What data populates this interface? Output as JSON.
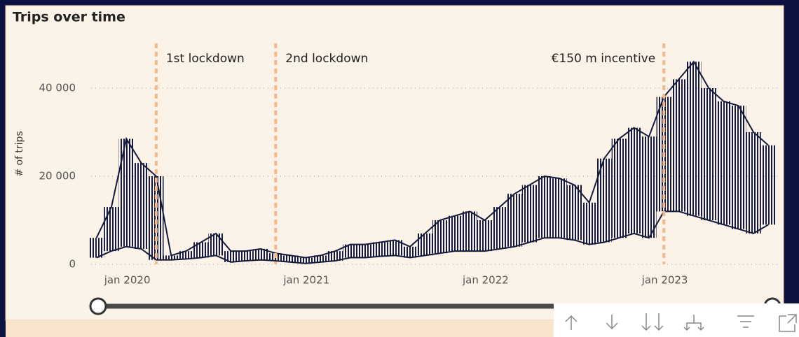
{
  "chart_data": {
    "type": "line",
    "title": "Trips over time",
    "y_label": "# of trips",
    "x": [
      "2019-11",
      "2019-12",
      "2020-01",
      "2020-02",
      "2020-03",
      "2020-04",
      "2020-05",
      "2020-06",
      "2020-07",
      "2020-08",
      "2020-09",
      "2020-10",
      "2020-11",
      "2020-12",
      "2021-01",
      "2021-02",
      "2021-03",
      "2021-04",
      "2021-05",
      "2021-06",
      "2021-07",
      "2021-08",
      "2021-09",
      "2021-10",
      "2021-11",
      "2021-12",
      "2022-01",
      "2022-02",
      "2022-03",
      "2022-04",
      "2022-05",
      "2022-06",
      "2022-07",
      "2022-08",
      "2022-09",
      "2022-10",
      "2022-11",
      "2022-12",
      "2023-01",
      "2023-02",
      "2023-03",
      "2023-04",
      "2023-05",
      "2023-06",
      "2023-07",
      "2023-08"
    ],
    "series": [
      {
        "color": "#141a3c",
        "values": [
          6000,
          13000,
          28500,
          23000,
          20000,
          2000,
          3000,
          5000,
          7000,
          3000,
          3000,
          3500,
          2500,
          2000,
          1500,
          2000,
          3000,
          4500,
          4500,
          5000,
          5500,
          4000,
          7000,
          10000,
          11000,
          12000,
          10000,
          13000,
          16000,
          18000,
          20000,
          19500,
          18000,
          14000,
          24000,
          28500,
          31000,
          29000,
          38000,
          42000,
          46000,
          40000,
          37000,
          36000,
          30000,
          27000
        ]
      },
      {
        "color": "#141a3c",
        "values": [
          1500,
          3000,
          4000,
          3500,
          1000,
          1000,
          1200,
          1500,
          2000,
          500,
          800,
          1000,
          800,
          500,
          200,
          500,
          800,
          1500,
          1500,
          1800,
          2000,
          1500,
          2000,
          2500,
          3000,
          3000,
          3000,
          3500,
          4000,
          5000,
          6000,
          6000,
          5500,
          4500,
          5000,
          6000,
          7000,
          6000,
          12000,
          12000,
          11000,
          10000,
          9000,
          8000,
          7000,
          9000
        ]
      }
    ],
    "xlim": [
      "2019-11",
      "2023-09"
    ],
    "xticks": [
      {
        "value": "2020-01",
        "label": "jan 2020"
      },
      {
        "value": "2021-01",
        "label": "jan 2021"
      },
      {
        "value": "2022-01",
        "label": "jan 2022"
      },
      {
        "value": "2023-01",
        "label": "jan 2023"
      }
    ],
    "ylim": [
      0,
      50000
    ],
    "yticks": [
      {
        "value": 0,
        "label": "0"
      },
      {
        "value": 20000,
        "label": "20 000"
      },
      {
        "value": 40000,
        "label": "40 000"
      }
    ],
    "grid": true,
    "annotations": [
      {
        "text": "1st lockdown",
        "x": "2020-03",
        "color": "#f5b88a"
      },
      {
        "text": "2nd lockdown",
        "x": "2020-11",
        "color": "#f5b88a"
      },
      {
        "text": "€150 m incentive",
        "x": "2023-01",
        "color": "#f5b88a"
      }
    ]
  }
}
